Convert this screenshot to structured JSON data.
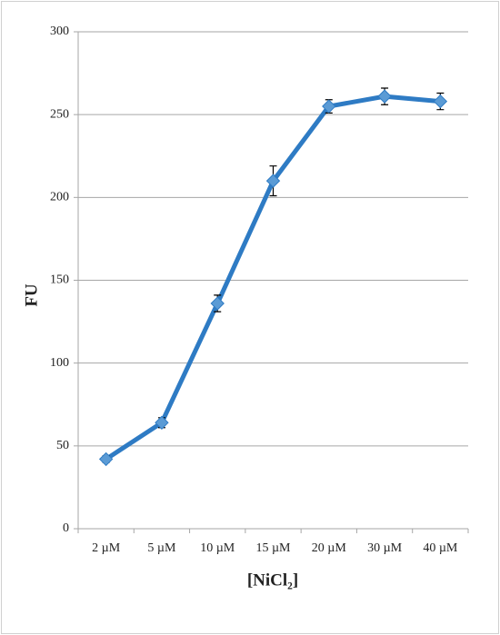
{
  "chart_data": {
    "type": "line",
    "x_label": "[NiCl₂]",
    "y_label": "FU",
    "categories": [
      "2 µM",
      "5 µM",
      "10 µM",
      "15 µM",
      "20 µM",
      "30 µM",
      "40 µM"
    ],
    "series": [
      {
        "color": "#2e7bc4",
        "marker_color": "#5b9bd5",
        "values": [
          42,
          64,
          136,
          210,
          255,
          261,
          258
        ],
        "errors": [
          2,
          3,
          5,
          9,
          4,
          5,
          5
        ]
      }
    ],
    "ylim": [
      0,
      300
    ],
    "yticks": [
      0,
      50,
      100,
      150,
      200,
      250,
      300
    ],
    "grid": true
  }
}
